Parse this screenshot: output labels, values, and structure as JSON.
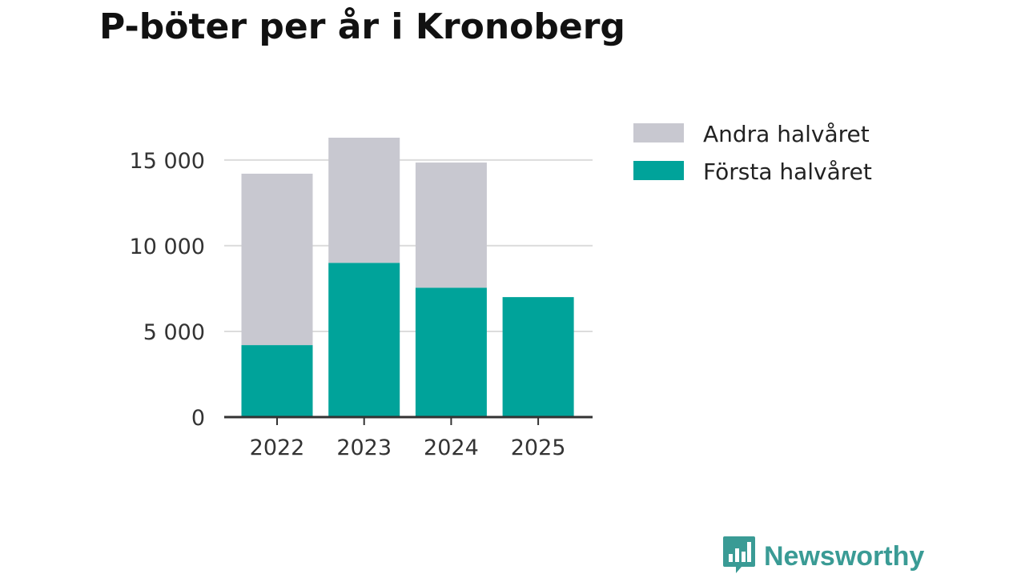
{
  "chart_data": {
    "type": "bar",
    "stacked": true,
    "title": "P-böter per år i Kronoberg",
    "categories": [
      "2022",
      "2023",
      "2024",
      "2025"
    ],
    "series": [
      {
        "name": "Första halvåret",
        "color": "#00a39a",
        "values": [
          4200,
          9000,
          7550,
          7000
        ]
      },
      {
        "name": "Andra halvåret",
        "color": "#c8c8d0",
        "values": [
          10000,
          7300,
          7300,
          0
        ]
      }
    ],
    "legend_order": [
      "Andra halvåret",
      "Första halvåret"
    ],
    "y_ticks": [
      0,
      5000,
      10000,
      15000
    ],
    "y_tick_labels": [
      "0",
      "5 000",
      "10 000",
      "15 000"
    ],
    "ylim": [
      0,
      16300
    ],
    "xlabel": "",
    "ylabel": "",
    "grid": true,
    "legend_position": "right"
  },
  "branding": {
    "logo_text": "Newsworthy",
    "logo_icon": "bar-chart-bubble-icon",
    "logo_color": "#3a9b95"
  }
}
